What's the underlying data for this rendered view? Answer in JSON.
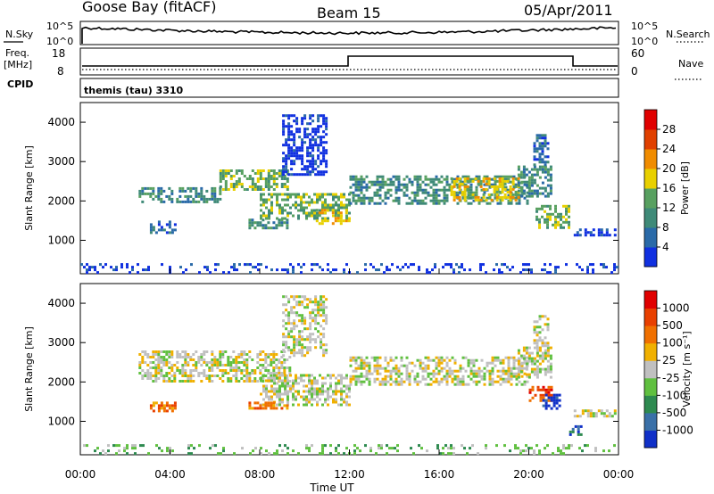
{
  "header": {
    "station": "Goose Bay (fitACF)",
    "beam": "Beam 15",
    "date": "05/Apr/2011"
  },
  "top_panels": {
    "nsky_label": "N.Sky",
    "nsky_top": "10^5",
    "nsky_bottom": "10^0",
    "nsearch_label": "N.Search",
    "nsearch_top": "10^5",
    "nsearch_bottom": "10^0",
    "freq_label": "Freq.",
    "freq_unit": "[MHz]",
    "freq_ticks": [
      "18",
      "8"
    ],
    "nave_label": "Nave",
    "nave_ticks": [
      "60",
      "0"
    ],
    "cpid_label": "CPID",
    "cpid_text": "themis (tau) 3310"
  },
  "chart_data": [
    {
      "type": "heatmap",
      "name": "power",
      "ylabel": "Slant Range [km]",
      "yticks": [
        1000,
        2000,
        3000,
        4000
      ],
      "ylim": [
        150,
        4500
      ],
      "xlim_hours": [
        0,
        24
      ],
      "colorbar": {
        "label": "Power [dB]",
        "ticks": [
          "4",
          "8",
          "12",
          "16",
          "20",
          "24",
          "28"
        ],
        "colors": [
          "#1030e0",
          "#2a6aa8",
          "#3f8a78",
          "#58a060",
          "#e8d000",
          "#f08c00",
          "#e04000",
          "#e00000"
        ]
      },
      "echo_regions": [
        {
          "t0": 2.6,
          "t1": 6.2,
          "r0": 2000,
          "r1": 2350,
          "level": 2
        },
        {
          "t0": 6.2,
          "t1": 9.3,
          "r0": 2300,
          "r1": 2800,
          "level": 3
        },
        {
          "t0": 8.0,
          "t1": 12.0,
          "r0": 1550,
          "r1": 2200,
          "level": 3
        },
        {
          "t0": 10.5,
          "t1": 12.0,
          "r0": 1450,
          "r1": 1800,
          "level": 4
        },
        {
          "t0": 12.0,
          "t1": 20.0,
          "r0": 1950,
          "r1": 2650,
          "level": 2
        },
        {
          "t0": 16.5,
          "t1": 19.5,
          "r0": 2050,
          "r1": 2600,
          "level": 4
        },
        {
          "t0": 19.5,
          "t1": 21.0,
          "r0": 2100,
          "r1": 2900,
          "level": 2
        },
        {
          "t0": 3.1,
          "t1": 4.2,
          "r0": 1200,
          "r1": 1500,
          "level": 1
        },
        {
          "t0": 7.5,
          "t1": 9.2,
          "r0": 1300,
          "r1": 1550,
          "level": 2
        },
        {
          "t0": 20.3,
          "t1": 21.8,
          "r0": 1300,
          "r1": 1900,
          "level": 3
        },
        {
          "t0": 22.0,
          "t1": 23.8,
          "r0": 1100,
          "r1": 1300,
          "level": 0
        },
        {
          "t0": 20.2,
          "t1": 20.8,
          "r0": 2900,
          "r1": 3700,
          "level": 1
        },
        {
          "t0": 9.0,
          "t1": 11.0,
          "r0": 2700,
          "r1": 4200,
          "level": 0
        },
        {
          "t0": 0.0,
          "t1": 24.0,
          "r0": 150,
          "r1": 420,
          "level": 0
        }
      ]
    },
    {
      "type": "heatmap",
      "name": "velocity",
      "ylabel": "Slant Range [km]",
      "xlabel": "Time UT",
      "yticks": [
        1000,
        2000,
        3000,
        4000
      ],
      "ylim": [
        150,
        4500
      ],
      "xlim_hours": [
        0,
        24
      ],
      "xticks": [
        "00:00",
        "04:00",
        "08:00",
        "12:00",
        "16:00",
        "20:00",
        "00:00"
      ],
      "colorbar": {
        "label": "Velocity [m s⁻¹]",
        "ticks": [
          "1000",
          "500",
          "100",
          "25",
          "-25",
          "-100",
          "-500",
          "-1000"
        ],
        "colors": [
          "#1030c8",
          "#3a70a8",
          "#2e8a50",
          "#60c040",
          "#c0c0c0",
          "#f0b000",
          "#f07000",
          "#e84000",
          "#e00000"
        ]
      },
      "echo_regions": [
        {
          "t0": 2.6,
          "t1": 9.3,
          "r0": 2000,
          "r1": 2800,
          "level": 4
        },
        {
          "t0": 8.0,
          "t1": 12.0,
          "r0": 1450,
          "r1": 2200,
          "level": 4
        },
        {
          "t0": 12.0,
          "t1": 20.0,
          "r0": 1950,
          "r1": 2650,
          "level": 4
        },
        {
          "t0": 19.5,
          "t1": 21.0,
          "r0": 2100,
          "r1": 2900,
          "level": 4
        },
        {
          "t0": 3.1,
          "t1": 4.2,
          "r0": 1250,
          "r1": 1500,
          "level": 6
        },
        {
          "t0": 7.5,
          "t1": 9.2,
          "r0": 1300,
          "r1": 1500,
          "level": 6
        },
        {
          "t0": 20.0,
          "t1": 21.0,
          "r0": 1500,
          "r1": 1900,
          "level": 7
        },
        {
          "t0": 20.6,
          "t1": 21.4,
          "r0": 1300,
          "r1": 1700,
          "level": 0
        },
        {
          "t0": 21.8,
          "t1": 22.3,
          "r0": 650,
          "r1": 900,
          "level": 1
        },
        {
          "t0": 22.0,
          "t1": 23.8,
          "r0": 1150,
          "r1": 1300,
          "level": 4
        },
        {
          "t0": 20.2,
          "t1": 20.8,
          "r0": 2900,
          "r1": 3700,
          "level": 4
        },
        {
          "t0": 9.0,
          "t1": 11.0,
          "r0": 2700,
          "r1": 4200,
          "level": 4
        },
        {
          "t0": 0.0,
          "t1": 24.0,
          "r0": 150,
          "r1": 420,
          "level": 3
        }
      ]
    }
  ]
}
